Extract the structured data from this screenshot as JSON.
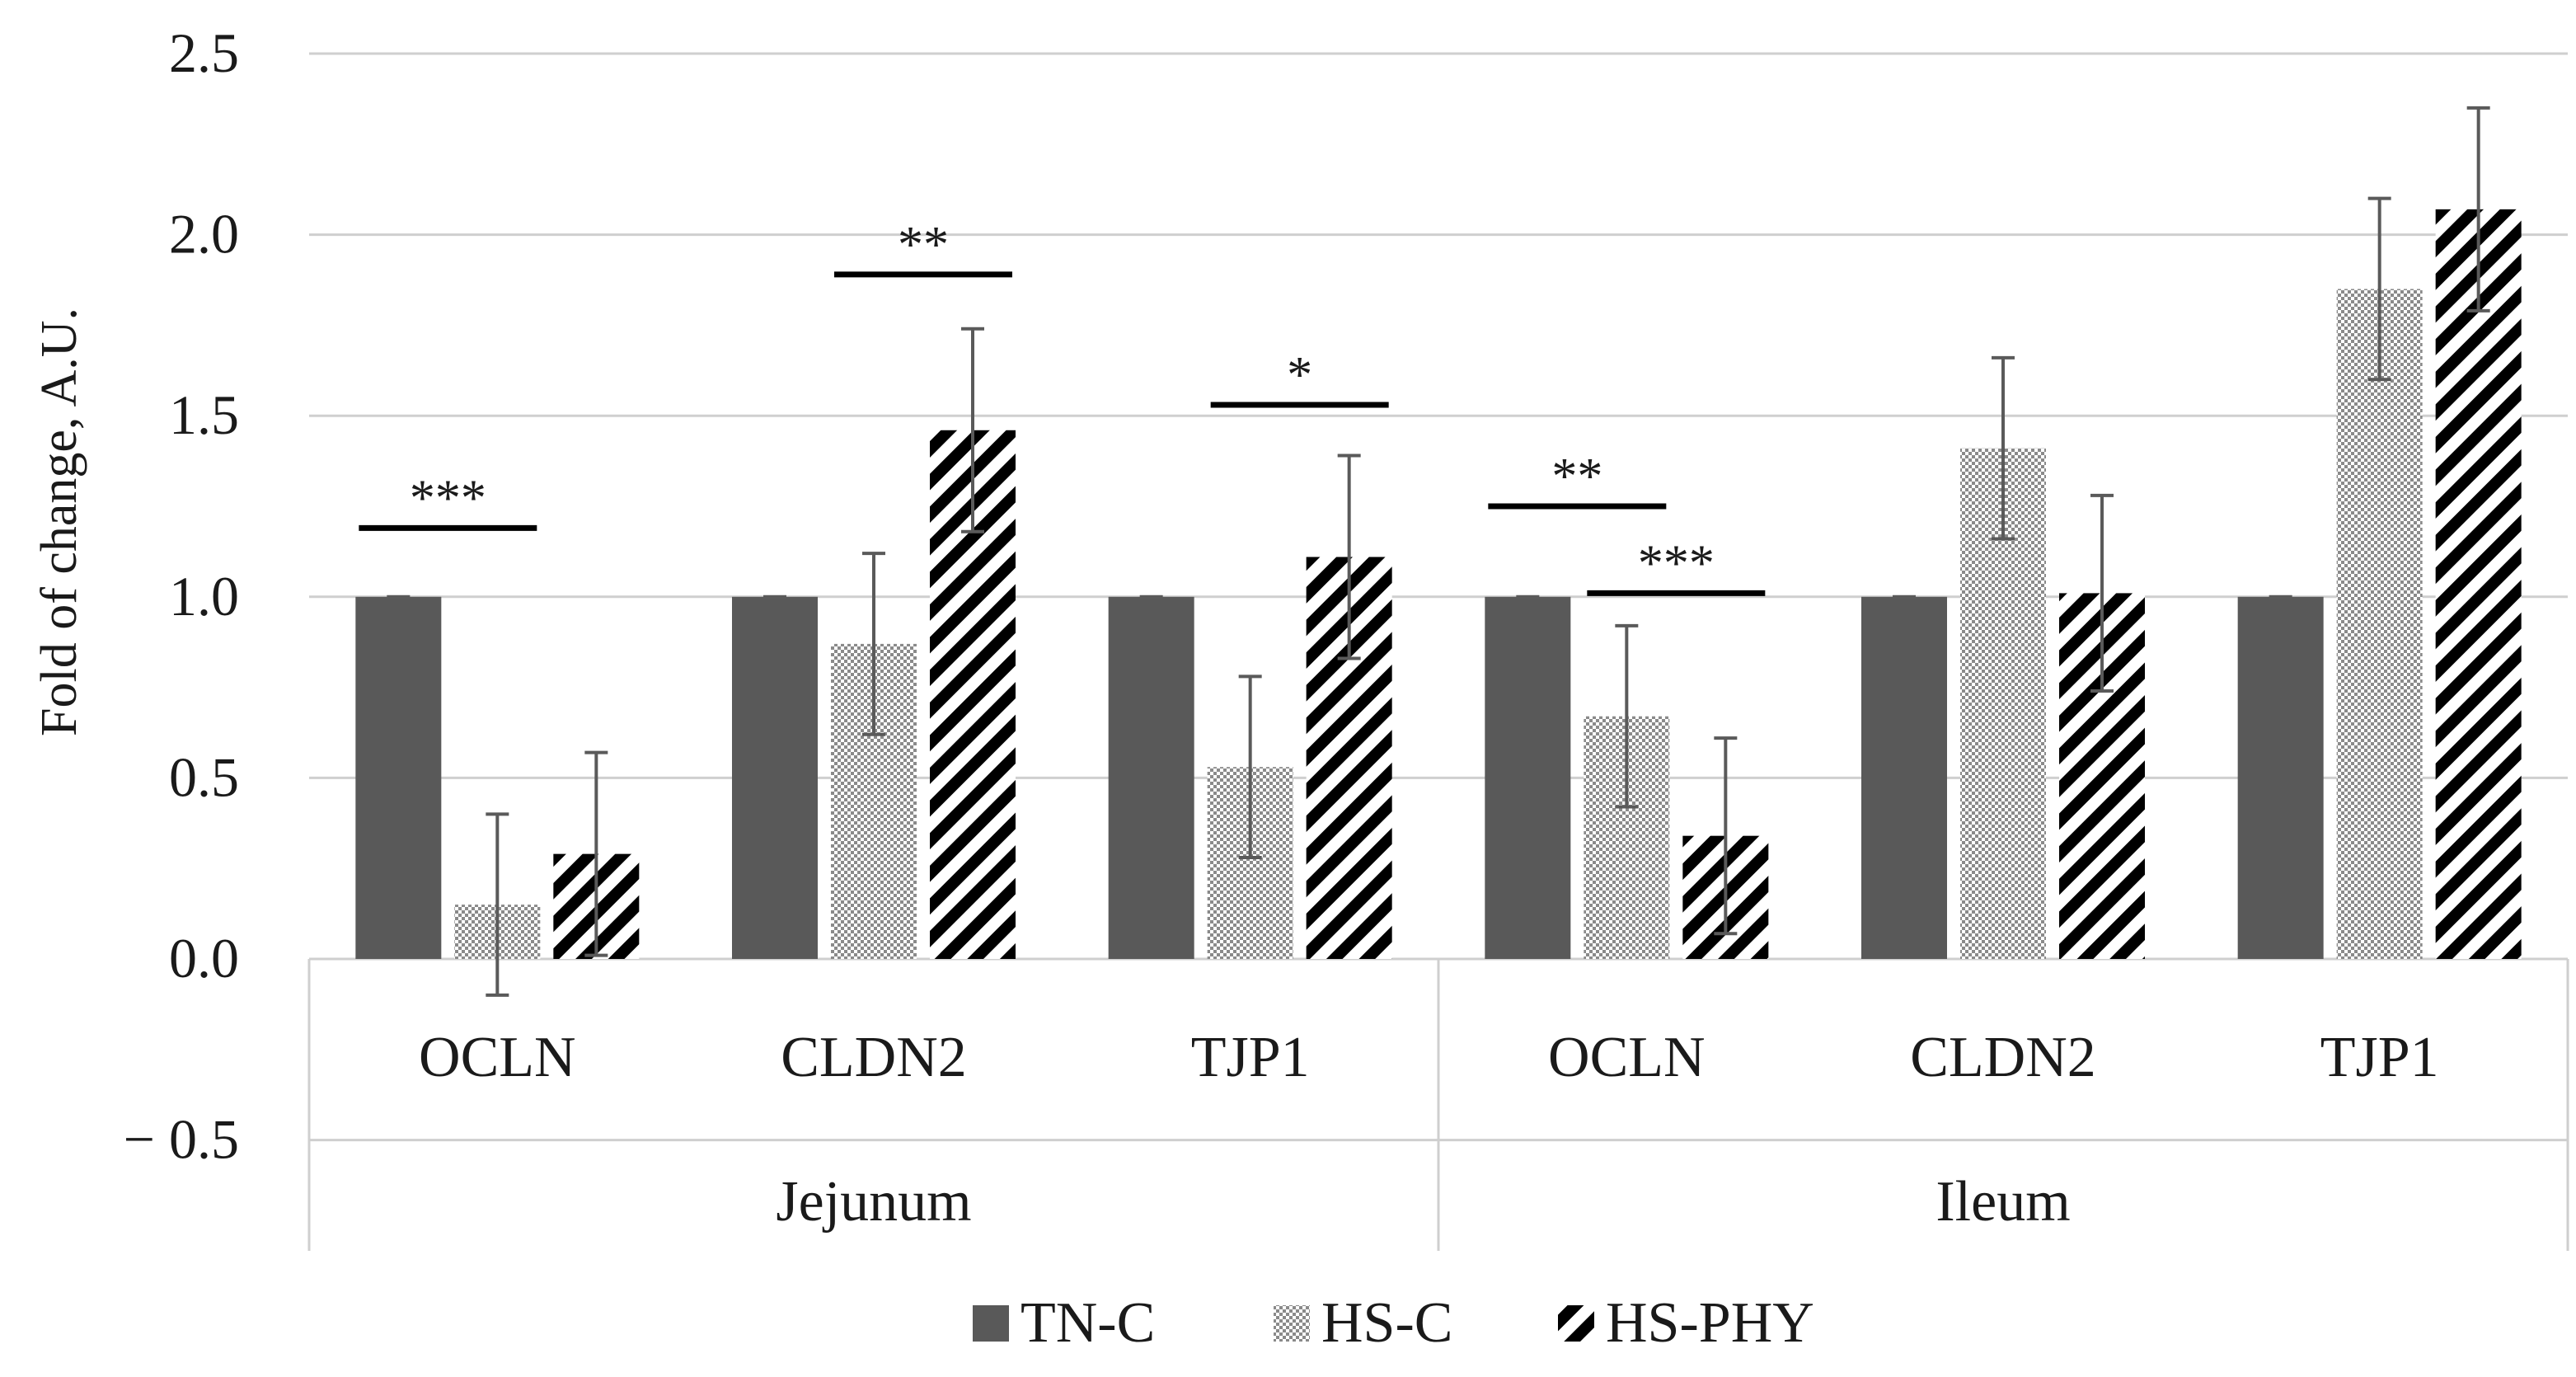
{
  "chart_data": {
    "type": "bar",
    "ylabel": "Fold of change, A.U.",
    "ylim": [
      -0.5,
      2.5
    ],
    "y_ticks": [
      "2.5",
      "2.0",
      "1.5",
      "1.0",
      "0.5",
      "0.0",
      "− 0.5"
    ],
    "y_tick_values": [
      2.5,
      2.0,
      1.5,
      1.0,
      0.5,
      0.0,
      -0.5
    ],
    "grid": true,
    "groups": [
      {
        "name": "Jejunum",
        "categories": [
          "OCLN",
          "CLDN2",
          "TJP1"
        ]
      },
      {
        "name": "Ileum",
        "categories": [
          "OCLN",
          "CLDN2",
          "TJP1"
        ]
      }
    ],
    "series": [
      {
        "name": "TN-C",
        "pattern": "solid",
        "color": "#595959",
        "values": [
          1.0,
          1.0,
          1.0,
          1.0,
          1.0,
          1.0
        ],
        "errors": [
          0.0,
          0.0,
          0.0,
          0.0,
          0.0,
          0.0
        ]
      },
      {
        "name": "HS-C",
        "pattern": "dots",
        "color": "#595959",
        "values": [
          0.15,
          0.87,
          0.53,
          0.67,
          1.41,
          1.85
        ],
        "errors": [
          0.25,
          0.25,
          0.25,
          0.25,
          0.25,
          0.25
        ]
      },
      {
        "name": "HS-PHY",
        "pattern": "hatch",
        "color": "#000000",
        "values": [
          0.29,
          1.46,
          1.11,
          0.34,
          1.01,
          2.07
        ],
        "errors": [
          0.28,
          0.28,
          0.28,
          0.27,
          0.27,
          0.28
        ]
      }
    ],
    "significance": [
      {
        "label": "***",
        "category_index": 0,
        "from_series": 0,
        "to_series": 1,
        "y": 1.19
      },
      {
        "label": "**",
        "category_index": 1,
        "from_series": 1,
        "to_series": 2,
        "y": 1.89
      },
      {
        "label": "*",
        "category_index": 2,
        "from_series": 1,
        "to_series": 2,
        "y": 1.53
      },
      {
        "label": "**",
        "category_index": 3,
        "from_series": 0,
        "to_series": 1,
        "y": 1.25
      },
      {
        "label": "***",
        "category_index": 3,
        "from_series": 1,
        "to_series": 2,
        "y": 1.01
      }
    ],
    "legend_position": "bottom"
  }
}
